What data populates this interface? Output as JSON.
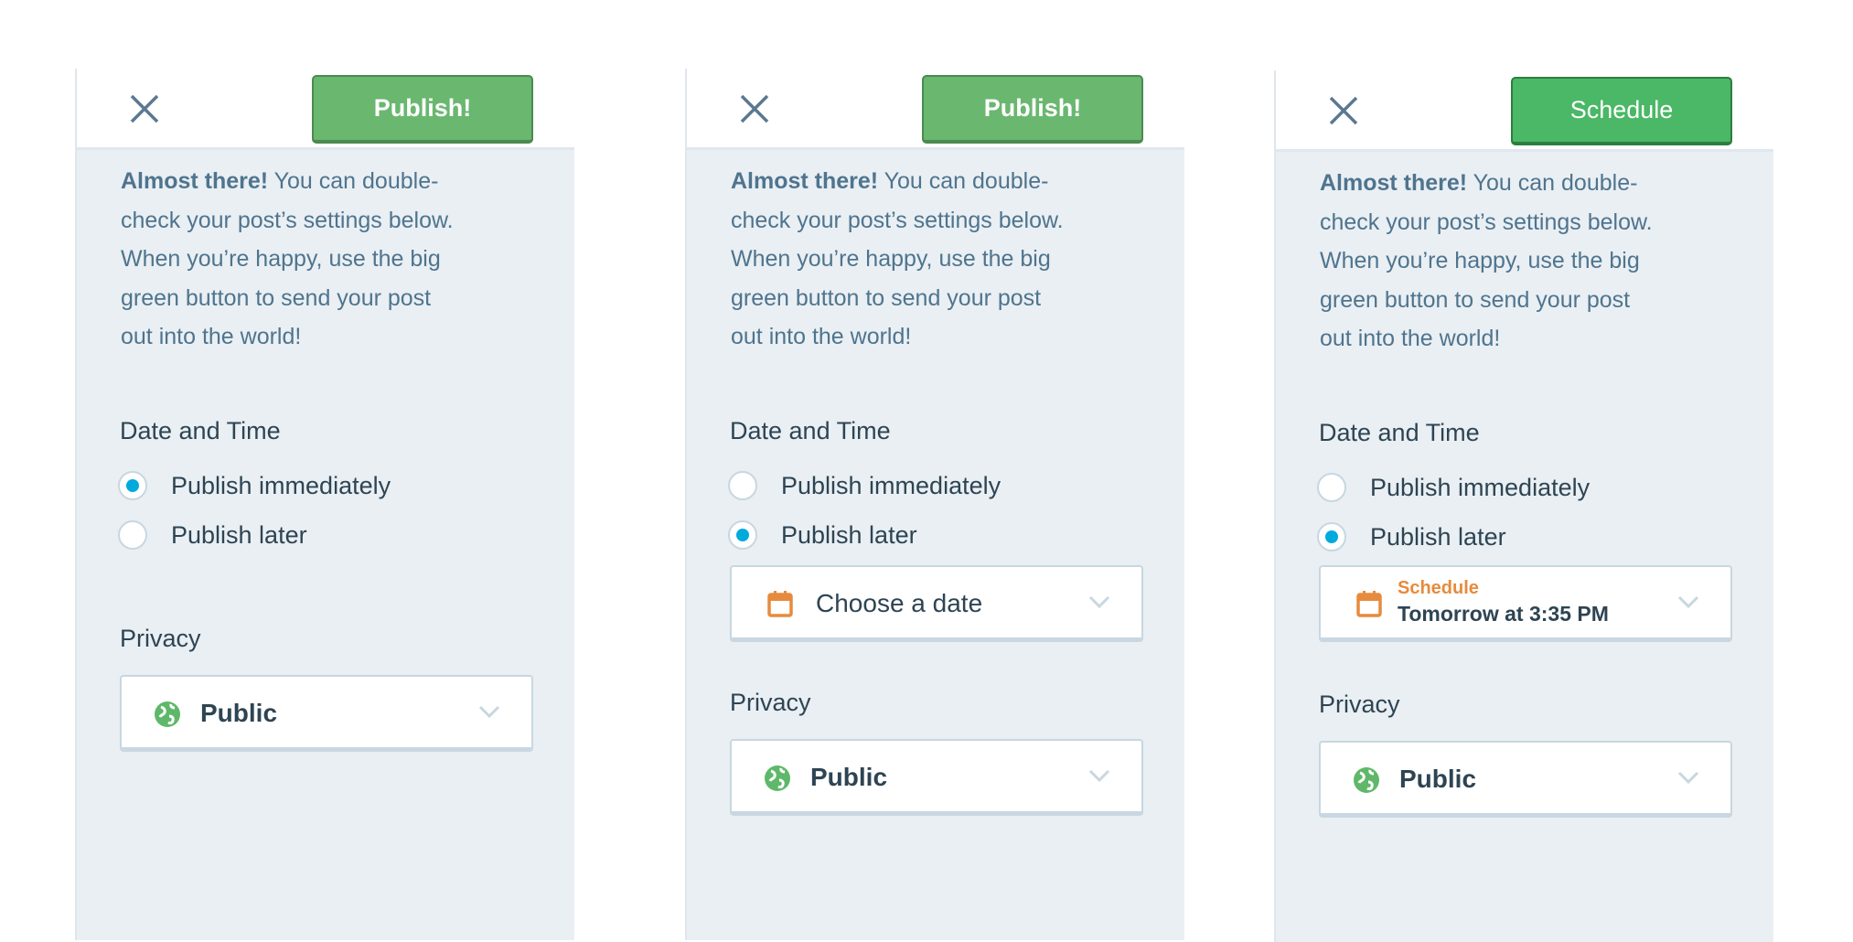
{
  "panels": [
    {
      "close_icon": "close-icon",
      "primary_button": "Publish!",
      "intro": {
        "bold": "Almost there!",
        "lines": [
          " You can double-",
          "check your post’s settings below.",
          "When you’re happy, use the big",
          "green button to send your post",
          "out into the world!"
        ]
      },
      "date_time_label": "Date and Time",
      "options": [
        "Publish immediately",
        "Publish later"
      ],
      "selected_option": "Publish immediately",
      "privacy_label": "Privacy",
      "privacy_value": "Public"
    },
    {
      "close_icon": "close-icon",
      "primary_button": "Publish!",
      "intro": {
        "bold": "Almost there!",
        "lines": [
          " You can double-",
          "check your post’s settings below.",
          "When you’re happy, use the big",
          "green button to send your post",
          "out into the world!"
        ]
      },
      "date_time_label": "Date and Time",
      "options": [
        "Publish immediately",
        "Publish later"
      ],
      "selected_option": "Publish later",
      "date_picker": "Choose a date",
      "privacy_label": "Privacy",
      "privacy_value": "Public"
    },
    {
      "close_icon": "close-icon",
      "primary_button": "Schedule",
      "intro": {
        "bold": "Almost there!",
        "lines": [
          " You can double-",
          "check your post’s settings below.",
          "When you’re happy, use the big",
          "green button to send your post",
          "out into the world!"
        ]
      },
      "date_time_label": "Date and Time",
      "options": [
        "Publish immediately",
        "Publish later"
      ],
      "selected_option": "Publish later",
      "date_label": "Schedule",
      "date_value": "Tomorrow at 3:35 PM",
      "privacy_label": "Privacy",
      "privacy_value": "Public"
    }
  ],
  "colors": {
    "publish_green": "#6ab76f",
    "schedule_green": "#4ab866",
    "radio_blue": "#00aadc",
    "calendar_orange": "#e68b3d",
    "globe_green": "#5fb86a",
    "panel_bg": "#e9eff3",
    "text": "#4f748e",
    "heading": "#2e4453"
  }
}
